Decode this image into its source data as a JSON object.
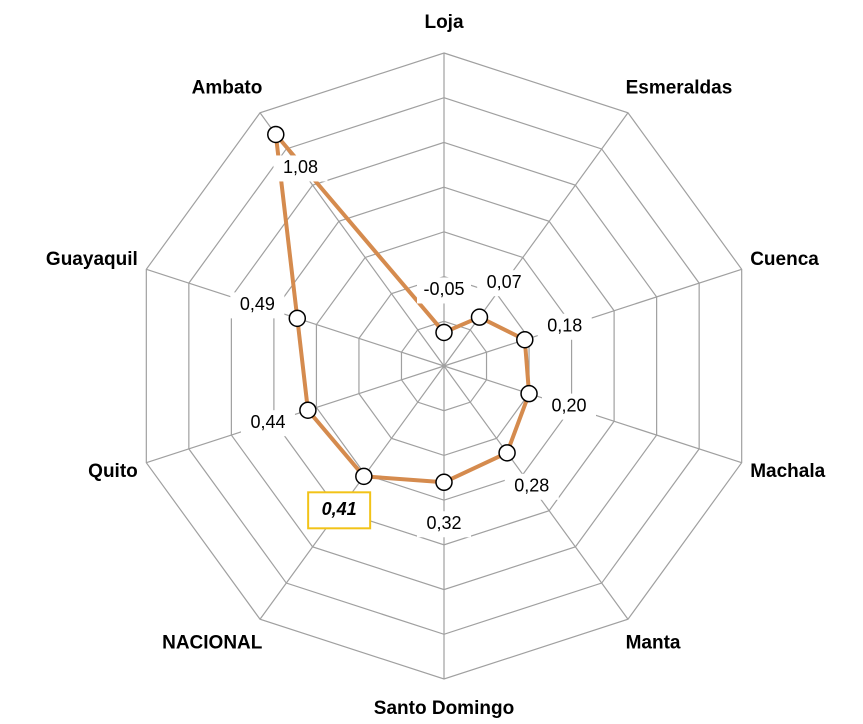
{
  "chart_data": {
    "type": "radar",
    "categories": [
      "Loja",
      "Esmeraldas",
      "Cuenca",
      "Machala",
      "Manta",
      "Santo Domingo",
      "NACIONAL",
      "Quito",
      "Guayaquil",
      "Ambato"
    ],
    "series": [
      {
        "color": "#d58b4e",
        "values": [
          -0.05,
          0.07,
          0.18,
          0.2,
          0.28,
          0.32,
          0.41,
          0.44,
          0.49,
          1.08
        ],
        "value_labels": [
          "-0,05",
          "0,07",
          "0,18",
          "0,20",
          "0,28",
          "0,32",
          "0,41",
          "0,44",
          "0,49",
          "1,08"
        ]
      }
    ],
    "ylim": [
      -0.2,
      1.2
    ],
    "yticks": [
      -0.2,
      0,
      0.2,
      0.4,
      0.6,
      0.8,
      1,
      1.2
    ],
    "grid": true,
    "highlight_category": "NACIONAL",
    "highlight_color": "#f2c318"
  }
}
